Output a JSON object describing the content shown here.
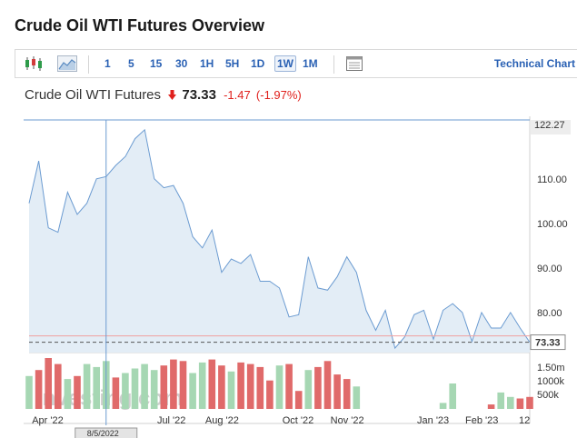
{
  "page": {
    "title": "Crude Oil WTI Futures Overview"
  },
  "toolbar": {
    "chart_type_icons": [
      "candlestick-icon",
      "area-chart-icon"
    ],
    "intervals": [
      {
        "label": "1",
        "active": false
      },
      {
        "label": "5",
        "active": false
      },
      {
        "label": "15",
        "active": false
      },
      {
        "label": "30",
        "active": false
      },
      {
        "label": "1H",
        "active": false
      },
      {
        "label": "5H",
        "active": false
      },
      {
        "label": "1D",
        "active": false
      },
      {
        "label": "1W",
        "active": true
      },
      {
        "label": "1M",
        "active": false
      }
    ],
    "settings_icon": "table-settings-icon",
    "technical_chart_label": "Technical Chart"
  },
  "quote": {
    "name": "Crude Oil WTI Futures",
    "direction_icon": "down-arrow-icon",
    "price": "73.33",
    "change": "-1.47",
    "change_pct": "(-1.97%)",
    "down_color": "#e0211d"
  },
  "watermark": {
    "text": "Investing.com"
  },
  "chart_data": {
    "type": "area",
    "title": "",
    "ylim": [
      71,
      123
    ],
    "y_ticks": [
      "122.27",
      "110.00",
      "100.00",
      "90.00",
      "80.00",
      "73.33"
    ],
    "y_tick_values": [
      122.27,
      110,
      100,
      90,
      80,
      73.33
    ],
    "x_tick_labels": [
      "Apr '22",
      "Jul '22",
      "Aug '22",
      "Oct '22",
      "Nov '22",
      "Jan '23",
      "Feb '23",
      "12"
    ],
    "x_tick_index": [
      2,
      15,
      20,
      28,
      33,
      42,
      47,
      53
    ],
    "crosshair_label": "8/5/2022",
    "crosshair_index": 8,
    "high_label": "122.27",
    "last_label": "73.33",
    "last_value": 73.33,
    "series": [
      {
        "values": [
          104.5,
          114,
          99,
          98,
          107,
          102,
          104.5,
          110,
          110.5,
          113,
          115,
          119,
          121,
          110,
          108,
          108.5,
          104.5,
          97,
          94.5,
          98.5,
          89,
          92,
          91,
          93,
          87,
          87,
          85.5,
          79,
          79.5,
          92.5,
          85.5,
          85,
          88,
          92.5,
          89,
          80.5,
          76,
          80.5,
          72,
          74.5,
          79.5,
          80.5,
          74,
          80.5,
          82,
          80,
          73.5,
          80,
          76.5,
          76.5,
          80,
          76.5,
          73.33
        ]
      }
    ],
    "volume": {
      "y_ticks": [
        "1.50m",
        "1000k",
        "500k"
      ],
      "max": 1700000,
      "bars": [
        {
          "v": 1100000,
          "up": true
        },
        {
          "v": 1300000,
          "up": false
        },
        {
          "v": 1700000,
          "up": false
        },
        {
          "v": 1500000,
          "up": false
        },
        {
          "v": 1000000,
          "up": true
        },
        {
          "v": 1100000,
          "up": false
        },
        {
          "v": 1500000,
          "up": true
        },
        {
          "v": 1400000,
          "up": true
        },
        {
          "v": 1600000,
          "up": true
        },
        {
          "v": 1050000,
          "up": false
        },
        {
          "v": 1200000,
          "up": true
        },
        {
          "v": 1350000,
          "up": true
        },
        {
          "v": 1500000,
          "up": true
        },
        {
          "v": 1300000,
          "up": true
        },
        {
          "v": 1450000,
          "up": false
        },
        {
          "v": 1650000,
          "up": false
        },
        {
          "v": 1600000,
          "up": false
        },
        {
          "v": 1200000,
          "up": true
        },
        {
          "v": 1550000,
          "up": true
        },
        {
          "v": 1650000,
          "up": false
        },
        {
          "v": 1450000,
          "up": false
        },
        {
          "v": 1250000,
          "up": true
        },
        {
          "v": 1550000,
          "up": false
        },
        {
          "v": 1500000,
          "up": false
        },
        {
          "v": 1400000,
          "up": false
        },
        {
          "v": 950000,
          "up": false
        },
        {
          "v": 1450000,
          "up": true
        },
        {
          "v": 1500000,
          "up": false
        },
        {
          "v": 600000,
          "up": false
        },
        {
          "v": 1300000,
          "up": true
        },
        {
          "v": 1400000,
          "up": false
        },
        {
          "v": 1600000,
          "up": false
        },
        {
          "v": 1150000,
          "up": false
        },
        {
          "v": 1000000,
          "up": false
        },
        {
          "v": 750000,
          "up": true
        },
        {
          "v": 0,
          "up": true
        },
        {
          "v": 0,
          "up": true
        },
        {
          "v": 0,
          "up": true
        },
        {
          "v": 0,
          "up": true
        },
        {
          "v": 0,
          "up": true
        },
        {
          "v": 0,
          "up": true
        },
        {
          "v": 0,
          "up": true
        },
        {
          "v": 0,
          "up": true
        },
        {
          "v": 200000,
          "up": true
        },
        {
          "v": 850000,
          "up": true
        },
        {
          "v": 0,
          "up": true
        },
        {
          "v": 0,
          "up": true
        },
        {
          "v": 0,
          "up": true
        },
        {
          "v": 150000,
          "up": false
        },
        {
          "v": 550000,
          "up": true
        },
        {
          "v": 400000,
          "up": true
        },
        {
          "v": 350000,
          "up": false
        },
        {
          "v": 400000,
          "up": false
        }
      ]
    }
  }
}
